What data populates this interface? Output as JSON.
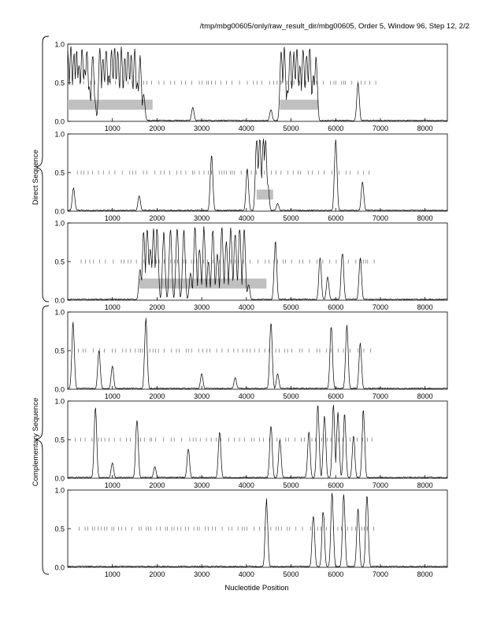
{
  "header": {
    "title": "/tmp/mbg00605/only/raw_result_dir/mbg00605, Order 5, Window 96, Step 12, 2/2"
  },
  "labels": {
    "direct": "Direct Sequence",
    "complementary": "Complementary Sequence",
    "xlabel": "Nucleotide Position"
  },
  "colors": {
    "line": "#000000",
    "bar": "#c0c0c0",
    "tick": "#555555"
  },
  "chart_data": [
    {
      "type": "line",
      "strand": "direct",
      "frame": 1,
      "xlim": [
        0,
        8500
      ],
      "ylim": [
        0,
        1
      ],
      "xticks": [
        "1000",
        "2000",
        "3000",
        "4000",
        "5000",
        "6000",
        "7000",
        "8000"
      ],
      "yticks": [
        "0.0",
        "0.5",
        "1.0"
      ],
      "coding_regions": [
        [
          0,
          1900
        ],
        [
          4750,
          5620
        ]
      ],
      "peaks": [
        [
          0,
          0.95
        ],
        [
          70,
          0.98
        ],
        [
          140,
          0.9
        ],
        [
          200,
          0.92
        ],
        [
          250,
          0.75
        ],
        [
          320,
          0.97
        ],
        [
          380,
          0.7
        ],
        [
          430,
          0.96
        ],
        [
          480,
          0.45
        ],
        [
          560,
          0.9
        ],
        [
          600,
          0.3
        ],
        [
          660,
          0.05
        ],
        [
          720,
          0.97
        ],
        [
          790,
          0.85
        ],
        [
          860,
          0.97
        ],
        [
          920,
          0.6
        ],
        [
          980,
          0.96
        ],
        [
          1050,
          0.97
        ],
        [
          1120,
          0.92
        ],
        [
          1200,
          0.97
        ],
        [
          1280,
          0.85
        ],
        [
          1350,
          0.97
        ],
        [
          1420,
          0.9
        ],
        [
          1500,
          0.95
        ],
        [
          1560,
          0.5
        ],
        [
          1620,
          0.88
        ],
        [
          1700,
          0.35
        ],
        [
          1760,
          0.02
        ],
        [
          2800,
          0.18
        ],
        [
          4550,
          0.15
        ],
        [
          4600,
          0.02
        ],
        [
          4780,
          0.95
        ],
        [
          4850,
          0.97
        ],
        [
          4920,
          0.4
        ],
        [
          4980,
          0.96
        ],
        [
          5060,
          0.92
        ],
        [
          5130,
          0.97
        ],
        [
          5200,
          0.75
        ],
        [
          5270,
          0.96
        ],
        [
          5350,
          0.9
        ],
        [
          5420,
          0.97
        ],
        [
          5500,
          0.6
        ],
        [
          5560,
          0.88
        ],
        [
          5620,
          0.02
        ],
        [
          6500,
          0.5
        ],
        [
          6550,
          0.02
        ]
      ]
    },
    {
      "type": "line",
      "strand": "direct",
      "frame": 2,
      "xlim": [
        0,
        8500
      ],
      "ylim": [
        0,
        1
      ],
      "xticks": [
        "1000",
        "2000",
        "3000",
        "4000",
        "5000",
        "6000",
        "7000",
        "8000"
      ],
      "yticks": [
        "0.0",
        "0.5",
        "1.0"
      ],
      "coding_regions": [
        [
          4230,
          4600
        ]
      ],
      "peaks": [
        [
          130,
          0.3
        ],
        [
          1600,
          0.2
        ],
        [
          3220,
          0.75
        ],
        [
          4020,
          0.55
        ],
        [
          4230,
          0.97
        ],
        [
          4300,
          0.98
        ],
        [
          4380,
          0.97
        ],
        [
          4430,
          0.95
        ],
        [
          4480,
          0.35
        ],
        [
          4700,
          0.1
        ],
        [
          6000,
          0.98
        ],
        [
          6600,
          0.38
        ]
      ]
    },
    {
      "type": "line",
      "strand": "direct",
      "frame": 3,
      "xlim": [
        0,
        8500
      ],
      "ylim": [
        0,
        1
      ],
      "xticks": [
        "1000",
        "2000",
        "3000",
        "4000",
        "5000",
        "6000",
        "7000",
        "8000"
      ],
      "yticks": [
        "0.0",
        "0.5",
        "1.0"
      ],
      "coding_regions": [
        [
          1600,
          4450
        ]
      ],
      "peaks": [
        [
          1620,
          0.4
        ],
        [
          1700,
          0.9
        ],
        [
          1780,
          0.97
        ],
        [
          1850,
          0.7
        ],
        [
          1920,
          0.95
        ],
        [
          2000,
          0.97
        ],
        [
          2150,
          0.9
        ],
        [
          2300,
          0.97
        ],
        [
          2450,
          0.98
        ],
        [
          2600,
          0.95
        ],
        [
          2750,
          0.35
        ],
        [
          2850,
          0.97
        ],
        [
          2950,
          0.7
        ],
        [
          3050,
          0.97
        ],
        [
          3150,
          0.5
        ],
        [
          3250,
          0.96
        ],
        [
          3350,
          0.6
        ],
        [
          3450,
          0.97
        ],
        [
          3550,
          0.8
        ],
        [
          3650,
          0.96
        ],
        [
          3750,
          0.92
        ],
        [
          3850,
          0.97
        ],
        [
          3950,
          0.95
        ],
        [
          4050,
          0.2
        ],
        [
          4650,
          0.8
        ],
        [
          5650,
          0.55
        ],
        [
          5820,
          0.3
        ],
        [
          6150,
          0.65
        ],
        [
          6550,
          0.55
        ]
      ]
    },
    {
      "type": "line",
      "strand": "complementary",
      "frame": 1,
      "xlim": [
        0,
        8500
      ],
      "ylim": [
        0,
        1
      ],
      "xticks": [
        "1000",
        "2000",
        "3000",
        "4000",
        "5000",
        "6000",
        "7000",
        "8000"
      ],
      "yticks": [
        "0.0",
        "0.5",
        "1.0"
      ],
      "coding_regions": [],
      "peaks": [
        [
          120,
          0.88
        ],
        [
          700,
          0.5
        ],
        [
          1000,
          0.3
        ],
        [
          1750,
          0.95
        ],
        [
          3000,
          0.2
        ],
        [
          3750,
          0.15
        ],
        [
          4550,
          0.9
        ],
        [
          4700,
          0.2
        ],
        [
          5900,
          0.85
        ],
        [
          6250,
          0.85
        ],
        [
          6550,
          0.6
        ]
      ]
    },
    {
      "type": "line",
      "strand": "complementary",
      "frame": 2,
      "xlim": [
        0,
        8500
      ],
      "ylim": [
        0,
        1
      ],
      "xticks": [
        "1000",
        "2000",
        "3000",
        "4000",
        "5000",
        "6000",
        "7000",
        "8000"
      ],
      "yticks": [
        "0.0",
        "0.5",
        "1.0"
      ],
      "coding_regions": [],
      "peaks": [
        [
          620,
          0.97
        ],
        [
          1000,
          0.2
        ],
        [
          1550,
          0.8
        ],
        [
          1950,
          0.15
        ],
        [
          2700,
          0.38
        ],
        [
          3400,
          0.6
        ],
        [
          4550,
          0.7
        ],
        [
          4750,
          0.5
        ],
        [
          5400,
          0.6
        ],
        [
          5600,
          0.98
        ],
        [
          5750,
          0.85
        ],
        [
          5950,
          0.97
        ],
        [
          6050,
          0.88
        ],
        [
          6200,
          0.85
        ],
        [
          6400,
          0.55
        ],
        [
          6620,
          0.92
        ]
      ]
    },
    {
      "type": "line",
      "strand": "complementary",
      "frame": 3,
      "xlim": [
        0,
        8500
      ],
      "ylim": [
        0,
        1
      ],
      "xticks": [
        "1000",
        "2000",
        "3000",
        "4000",
        "5000",
        "6000",
        "7000",
        "8000"
      ],
      "yticks": [
        "0.0",
        "0.5",
        "1.0"
      ],
      "coding_regions": [],
      "peaks": [
        [
          4450,
          0.9
        ],
        [
          5500,
          0.7
        ],
        [
          5720,
          0.75
        ],
        [
          5920,
          0.98
        ],
        [
          6180,
          0.97
        ],
        [
          6500,
          0.8
        ],
        [
          6700,
          0.95
        ]
      ]
    }
  ]
}
